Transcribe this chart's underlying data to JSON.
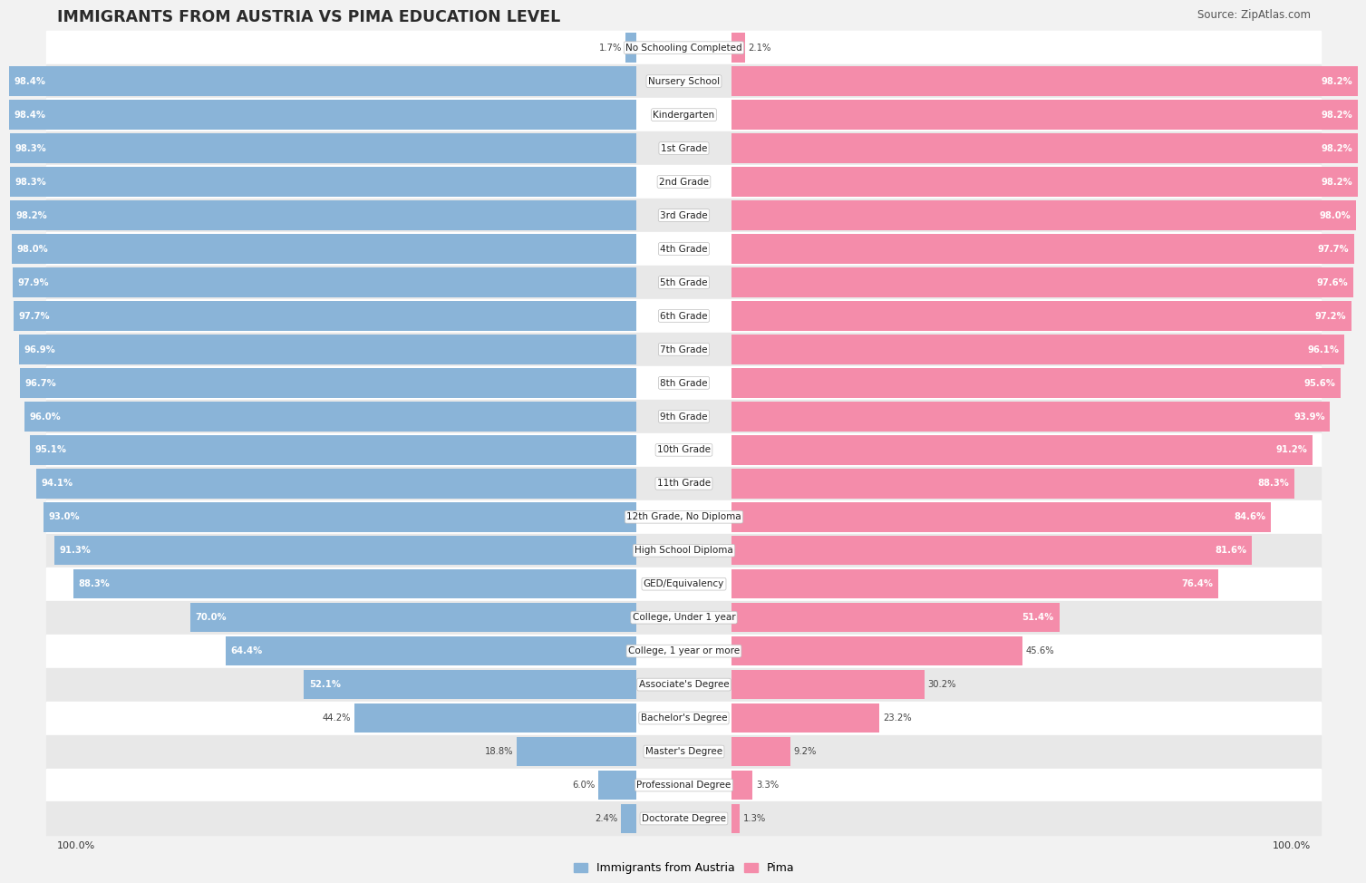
{
  "title": "IMMIGRANTS FROM AUSTRIA VS PIMA EDUCATION LEVEL",
  "source": "Source: ZipAtlas.com",
  "categories": [
    "No Schooling Completed",
    "Nursery School",
    "Kindergarten",
    "1st Grade",
    "2nd Grade",
    "3rd Grade",
    "4th Grade",
    "5th Grade",
    "6th Grade",
    "7th Grade",
    "8th Grade",
    "9th Grade",
    "10th Grade",
    "11th Grade",
    "12th Grade, No Diploma",
    "High School Diploma",
    "GED/Equivalency",
    "College, Under 1 year",
    "College, 1 year or more",
    "Associate's Degree",
    "Bachelor's Degree",
    "Master's Degree",
    "Professional Degree",
    "Doctorate Degree"
  ],
  "austria_values": [
    1.7,
    98.4,
    98.4,
    98.3,
    98.3,
    98.2,
    98.0,
    97.9,
    97.7,
    96.9,
    96.7,
    96.0,
    95.1,
    94.1,
    93.0,
    91.3,
    88.3,
    70.0,
    64.4,
    52.1,
    44.2,
    18.8,
    6.0,
    2.4
  ],
  "pima_values": [
    2.1,
    98.2,
    98.2,
    98.2,
    98.2,
    98.0,
    97.7,
    97.6,
    97.2,
    96.1,
    95.6,
    93.9,
    91.2,
    88.3,
    84.6,
    81.6,
    76.4,
    51.4,
    45.6,
    30.2,
    23.2,
    9.2,
    3.3,
    1.3
  ],
  "austria_color": "#8ab4d8",
  "pima_color": "#f48caa",
  "background_color": "#f2f2f2",
  "row_bg_even": "#ffffff",
  "row_bg_odd": "#e8e8e8",
  "legend_austria": "Immigrants from Austria",
  "legend_pima": "Pima",
  "austria_threshold": 50,
  "pima_threshold": 50
}
